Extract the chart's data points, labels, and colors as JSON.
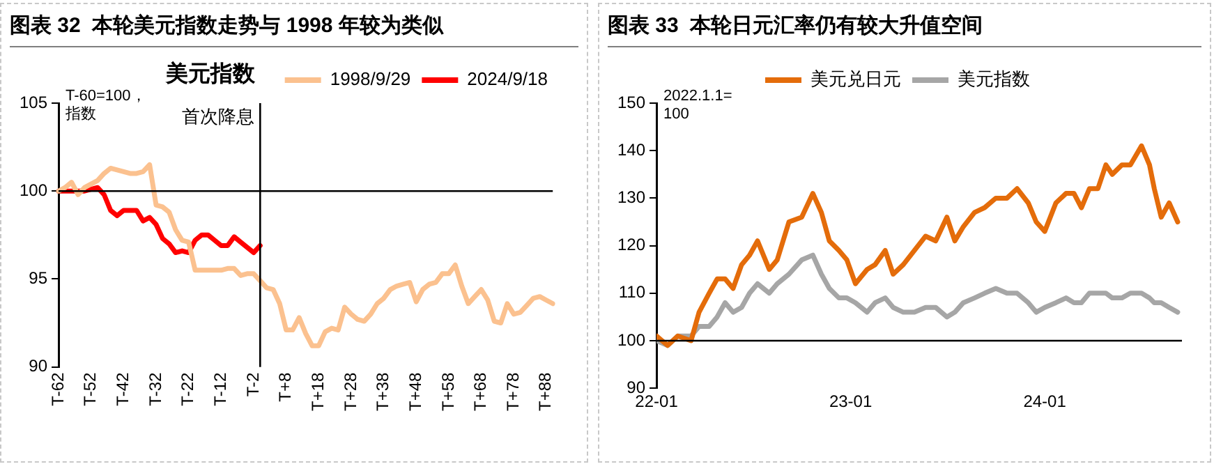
{
  "chart_data": [
    {
      "type": "line",
      "title": "图表 32  本轮美元指数走势与 1998 年较为类似",
      "subtitle": "美元指数",
      "ylabel": "T-60=100，指数",
      "series": [
        {
          "name": "1998/9/29",
          "color": "#fbc18f",
          "values": [
            100,
            100.2,
            100.5,
            99.8,
            100.2,
            100.4,
            100.6,
            101.0,
            101.3,
            101.2,
            101.1,
            101.0,
            101.0,
            101.1,
            101.5,
            99.2,
            99.1,
            98.8,
            97.8,
            97.2,
            97.1,
            95.5,
            95.5,
            95.5,
            95.5,
            95.5,
            95.6,
            95.6,
            95.2,
            95.3,
            95.3,
            94.9,
            94.5,
            94.4,
            93.6,
            92.1,
            92.1,
            92.8,
            91.9,
            91.2,
            91.2,
            92.0,
            92.2,
            92.1,
            93.4,
            93.0,
            92.7,
            92.6,
            93.0,
            93.6,
            93.9,
            94.4,
            94.6,
            94.7,
            94.8,
            93.7,
            94.4,
            94.7,
            94.8,
            95.3,
            95.3,
            95.8,
            94.6,
            93.6,
            94.0,
            94.4,
            93.8,
            92.6,
            92.5,
            93.6,
            93.0,
            93.1,
            93.5,
            93.9,
            94.0,
            93.8,
            93.6
          ]
        },
        {
          "name": "2024/9/18",
          "color": "#ff0000",
          "values": [
            100,
            100,
            100,
            100,
            100,
            100.1,
            100.2,
            99.8,
            98.9,
            98.6,
            98.9,
            98.9,
            98.9,
            98.3,
            98.5,
            98.1,
            97.3,
            97.0,
            96.5,
            96.6,
            96.5,
            97.2,
            97.5,
            97.5,
            97.2,
            96.9,
            96.9,
            97.4,
            97.1,
            96.8,
            96.5,
            96.9,
            null,
            null,
            null,
            null,
            null,
            null,
            null,
            null,
            null,
            null,
            null,
            null,
            null,
            null,
            null,
            null,
            null,
            null,
            null,
            null,
            null,
            null,
            null,
            null,
            null,
            null,
            null,
            null,
            null,
            null,
            null,
            null,
            null,
            null,
            null,
            null,
            null,
            null,
            null,
            null,
            null,
            null,
            null,
            null,
            null
          ]
        }
      ],
      "categories": [
        "T-62",
        null,
        null,
        null,
        null,
        "T-52",
        null,
        null,
        null,
        null,
        "T-42",
        null,
        null,
        null,
        null,
        "T-32",
        null,
        null,
        null,
        null,
        "T-22",
        null,
        null,
        null,
        null,
        "T-12",
        null,
        null,
        null,
        null,
        "T-2",
        null,
        null,
        null,
        null,
        "T+8",
        null,
        null,
        null,
        null,
        "T+18",
        null,
        null,
        null,
        null,
        "T+28",
        null,
        null,
        null,
        null,
        "T+38",
        null,
        null,
        null,
        null,
        "T+48",
        null,
        null,
        null,
        null,
        "T+58",
        null,
        null,
        null,
        null,
        "T+68",
        null,
        null,
        null,
        null,
        "T+78",
        null,
        null,
        null,
        null,
        "T+88",
        null
      ],
      "ylim": [
        90,
        105
      ],
      "yticks": [
        90,
        95,
        100,
        105
      ],
      "ref_lines": [
        {
          "axis": "y",
          "value": 100
        }
      ],
      "annotations": [
        "首次降息"
      ],
      "legend": "top right",
      "grid": false,
      "marker": "none",
      "line_style": "solid"
    },
    {
      "type": "line",
      "title": "图表 33  本轮日元汇率仍有较大升值空间",
      "ylabel": "2022.1.1=100",
      "x": [
        "2022-01-01",
        "2022-01-22",
        "2022-02-10",
        "2022-03-07",
        "2022-03-22",
        "2022-04-10",
        "2022-04-25",
        "2022-05-10",
        "2022-05-25",
        "2022-06-10",
        "2022-06-25",
        "2022-07-10",
        "2022-08-01",
        "2022-08-16",
        "2022-09-07",
        "2022-10-01",
        "2022-10-22",
        "2022-11-07",
        "2022-11-22",
        "2022-12-10",
        "2022-12-25",
        "2023-01-10",
        "2023-02-01",
        "2023-02-16",
        "2023-03-07",
        "2023-03-22",
        "2023-04-10",
        "2023-05-01",
        "2023-05-22",
        "2023-06-10",
        "2023-07-01",
        "2023-07-16",
        "2023-08-01",
        "2023-08-22",
        "2023-09-10",
        "2023-10-01",
        "2023-10-22",
        "2023-11-10",
        "2023-12-01",
        "2023-12-16",
        "2024-01-01",
        "2024-01-22",
        "2024-02-10",
        "2024-02-25",
        "2024-03-10",
        "2024-03-25",
        "2024-04-10",
        "2024-04-25",
        "2024-05-07",
        "2024-05-25",
        "2024-06-10",
        "2024-07-01",
        "2024-07-16",
        "2024-07-25",
        "2024-08-07",
        "2024-08-22",
        "2024-09-07"
      ],
      "series": [
        {
          "name": "美元兑日元",
          "color": "#e46c0a",
          "values": [
            101,
            99,
            101,
            100,
            106,
            110,
            113,
            113,
            111,
            116,
            118,
            121,
            115,
            117,
            125,
            126,
            131,
            127,
            121,
            119,
            117,
            112,
            115,
            116,
            119,
            114,
            116,
            119,
            122,
            121,
            126,
            121,
            124,
            127,
            128,
            130,
            130,
            132,
            129,
            125,
            123,
            129,
            131,
            131,
            128,
            132,
            132,
            137,
            135,
            137,
            137,
            141,
            137,
            132,
            126,
            129,
            125
          ]
        },
        {
          "name": "美元指数",
          "color": "#a6a6a6",
          "values": [
            100,
            99,
            101,
            101,
            103,
            103,
            105,
            108,
            106,
            107,
            110,
            112,
            110,
            112,
            114,
            117,
            118,
            114,
            111,
            109,
            109,
            108,
            106,
            108,
            109,
            107,
            106,
            106,
            107,
            107,
            105,
            106,
            108,
            109,
            110,
            111,
            110,
            110,
            108,
            106,
            107,
            108,
            109,
            108,
            108,
            110,
            110,
            110,
            109,
            109,
            110,
            110,
            109,
            108,
            108,
            107,
            106
          ]
        }
      ],
      "xlim": [
        "2022-01-01",
        "2024-09-15"
      ],
      "xticks": [
        {
          "value": "2022-01-01",
          "label": "22-01"
        },
        {
          "value": "2023-01-01",
          "label": "23-01"
        },
        {
          "value": "2024-01-01",
          "label": "24-01"
        }
      ],
      "ylim": [
        90,
        150
      ],
      "yticks": [
        90,
        100,
        110,
        120,
        130,
        140,
        150
      ],
      "ref_lines": [
        {
          "axis": "y",
          "value": 100
        }
      ],
      "legend": "top",
      "grid": false,
      "marker": "none",
      "line_style": "solid"
    }
  ]
}
